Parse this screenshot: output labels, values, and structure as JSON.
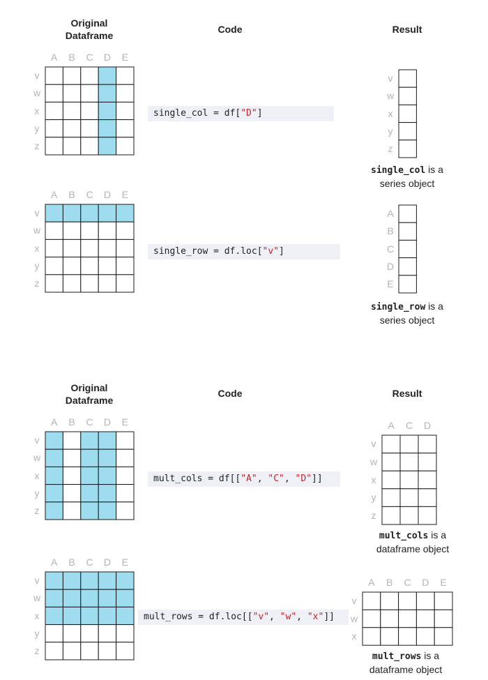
{
  "colors": {
    "highlight": "#9edcf0",
    "grid": "#1a1a1a",
    "code_bg": "#eef0f5",
    "string": "#c0262f",
    "index_label": "#b3b3b3"
  },
  "headers": {
    "original": "Original Dataframe",
    "original_line1": "Original",
    "original_line2": "Dataframe",
    "code": "Code",
    "result": "Result"
  },
  "examples": [
    {
      "id": "single_col",
      "code": {
        "pre": "single_col = df[",
        "s1": "\"D\"",
        "post": "]"
      },
      "caption": {
        "var": "single_col",
        "rest1": " is a",
        "line2": "series object"
      },
      "result_rows": [
        "v",
        "w",
        "x",
        "y",
        "z"
      ]
    },
    {
      "id": "single_row",
      "code": {
        "pre": "single_row = df.loc[",
        "s1": "\"v\"",
        "post": "]"
      },
      "caption": {
        "var": "single_row",
        "rest1": " is a",
        "line2": "series object"
      },
      "result_rows": [
        "A",
        "B",
        "C",
        "D",
        "E"
      ]
    },
    {
      "id": "mult_cols",
      "code": {
        "pre": "mult_cols = df[[",
        "s1": "\"A\"",
        "sep1": ", ",
        "s2": "\"C\"",
        "sep2": ", ",
        "s3": "\"D\"",
        "post": "]]"
      },
      "caption": {
        "var": "mult_cols",
        "rest1": " is a",
        "line2": "dataframe object"
      },
      "result_cols": [
        "A",
        "C",
        "D"
      ],
      "result_rows": [
        "v",
        "w",
        "x",
        "y",
        "z"
      ]
    },
    {
      "id": "mult_rows",
      "code": {
        "pre": "mult_rows = df.loc[[",
        "s1": "\"v\"",
        "sep1": ", ",
        "s2": "\"w\"",
        "sep2": ", ",
        "s3": "\"x\"",
        "post": "]]"
      },
      "caption": {
        "var": "mult_rows",
        "rest1": " is a",
        "line2": "dataframe object"
      },
      "result_cols": [
        "A",
        "B",
        "C",
        "D",
        "E"
      ],
      "result_rows": [
        "v",
        "w",
        "x"
      ]
    }
  ],
  "dataframe": {
    "columns": [
      "A",
      "B",
      "C",
      "D",
      "E"
    ],
    "rows": [
      "v",
      "w",
      "x",
      "y",
      "z"
    ]
  },
  "highlights": {
    "single_col": {
      "cols": [
        3
      ],
      "rows": []
    },
    "single_row": {
      "cols": [],
      "rows": [
        0
      ]
    },
    "mult_cols": {
      "cols": [
        0,
        2,
        3
      ],
      "rows": []
    },
    "mult_rows": {
      "cols": [],
      "rows": [
        0,
        1,
        2
      ]
    }
  }
}
